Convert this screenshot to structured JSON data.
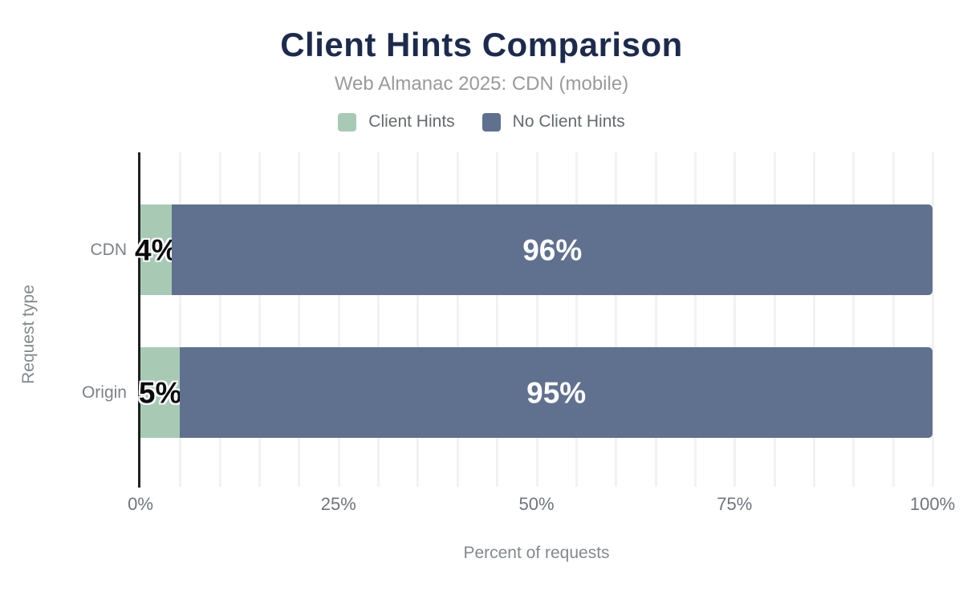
{
  "chart": {
    "title": "Client Hints Comparison",
    "subtitle": "Web Almanac 2025: CDN (mobile)"
  },
  "chart_data": {
    "type": "bar",
    "orientation": "horizontal",
    "stacked": true,
    "title": "Client Hints Comparison",
    "subtitle": "Web Almanac 2025: CDN (mobile)",
    "categories": [
      "CDN",
      "Origin"
    ],
    "series": [
      {
        "name": "Client Hints",
        "color": "#a8cab5",
        "values": [
          4,
          5
        ]
      },
      {
        "name": "No Client Hints",
        "color": "#5f718e",
        "values": [
          96,
          95
        ]
      }
    ],
    "xlabel": "Percent of requests",
    "ylabel": "Request type",
    "xlim": [
      0,
      100
    ],
    "xticks": [
      0,
      25,
      50,
      75,
      100
    ],
    "xtick_labels": [
      "0%",
      "25%",
      "50%",
      "75%",
      "100%"
    ],
    "grid_step_percent": 5,
    "grid_on": true,
    "value_label_format": "{v}%",
    "legend_position": "top"
  },
  "colors": {
    "title": "#1c2b4d",
    "subtitle": "#9a9a9a",
    "axis_line": "#1f2020",
    "gridline": "#f2f2f2",
    "series_client_hints": "#a8cab5",
    "series_no_client_hints": "#5f718e",
    "label_on_light": "#0c0c0c",
    "label_on_dark": "#ffffff",
    "background": "#ffffff"
  }
}
